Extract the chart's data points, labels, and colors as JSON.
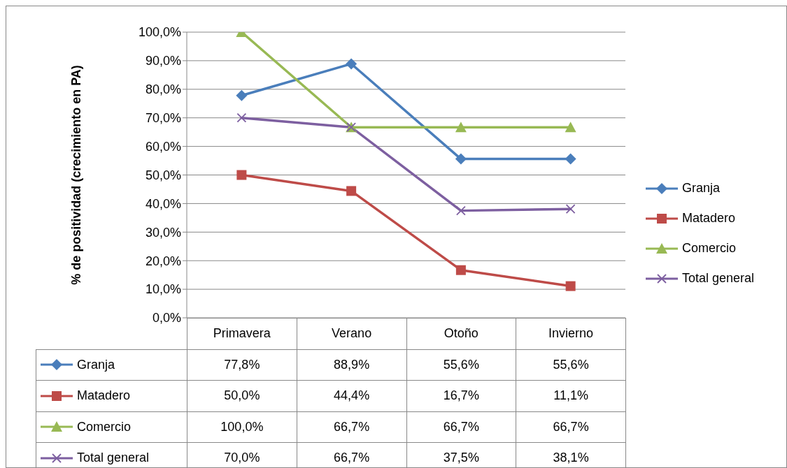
{
  "chart_data": {
    "type": "line",
    "ylabel": "% de positividad  (crecimiento en PA)",
    "categories": [
      "Primavera",
      "Verano",
      "Otoño",
      "Invierno"
    ],
    "series": [
      {
        "name": "Granja",
        "color": "#4a7ebb",
        "marker": "diamond",
        "values": [
          77.8,
          88.9,
          55.6,
          55.6
        ],
        "value_labels": [
          "77,8%",
          "88,9%",
          "55,6%",
          "55,6%"
        ]
      },
      {
        "name": "Matadero",
        "color": "#be4b48",
        "marker": "square",
        "values": [
          50.0,
          44.4,
          16.7,
          11.1
        ],
        "value_labels": [
          "50,0%",
          "44,4%",
          "16,7%",
          "11,1%"
        ]
      },
      {
        "name": "Comercio",
        "color": "#98b954",
        "marker": "triangle",
        "values": [
          100.0,
          66.7,
          66.7,
          66.7
        ],
        "value_labels": [
          "100,0%",
          "66,7%",
          "66,7%",
          "66,7%"
        ]
      },
      {
        "name": "Total general",
        "color": "#7d5fa0",
        "marker": "cross",
        "values": [
          70.0,
          66.7,
          37.5,
          38.1
        ],
        "value_labels": [
          "70,0%",
          "66,7%",
          "37,5%",
          "38,1%"
        ]
      }
    ],
    "ylim": [
      0,
      100
    ],
    "yticks": [
      {
        "value": 0,
        "label": "0,0%"
      },
      {
        "value": 10,
        "label": "10,0%"
      },
      {
        "value": 20,
        "label": "20,0%"
      },
      {
        "value": 30,
        "label": "30,0%"
      },
      {
        "value": 40,
        "label": "40,0%"
      },
      {
        "value": 50,
        "label": "50,0%"
      },
      {
        "value": 60,
        "label": "60,0%"
      },
      {
        "value": 70,
        "label": "70,0%"
      },
      {
        "value": 80,
        "label": "80,0%"
      },
      {
        "value": 90,
        "label": "90,0%"
      },
      {
        "value": 100,
        "label": "100,0%"
      }
    ],
    "grid": "y",
    "legend": "right",
    "line_style": "solid"
  }
}
